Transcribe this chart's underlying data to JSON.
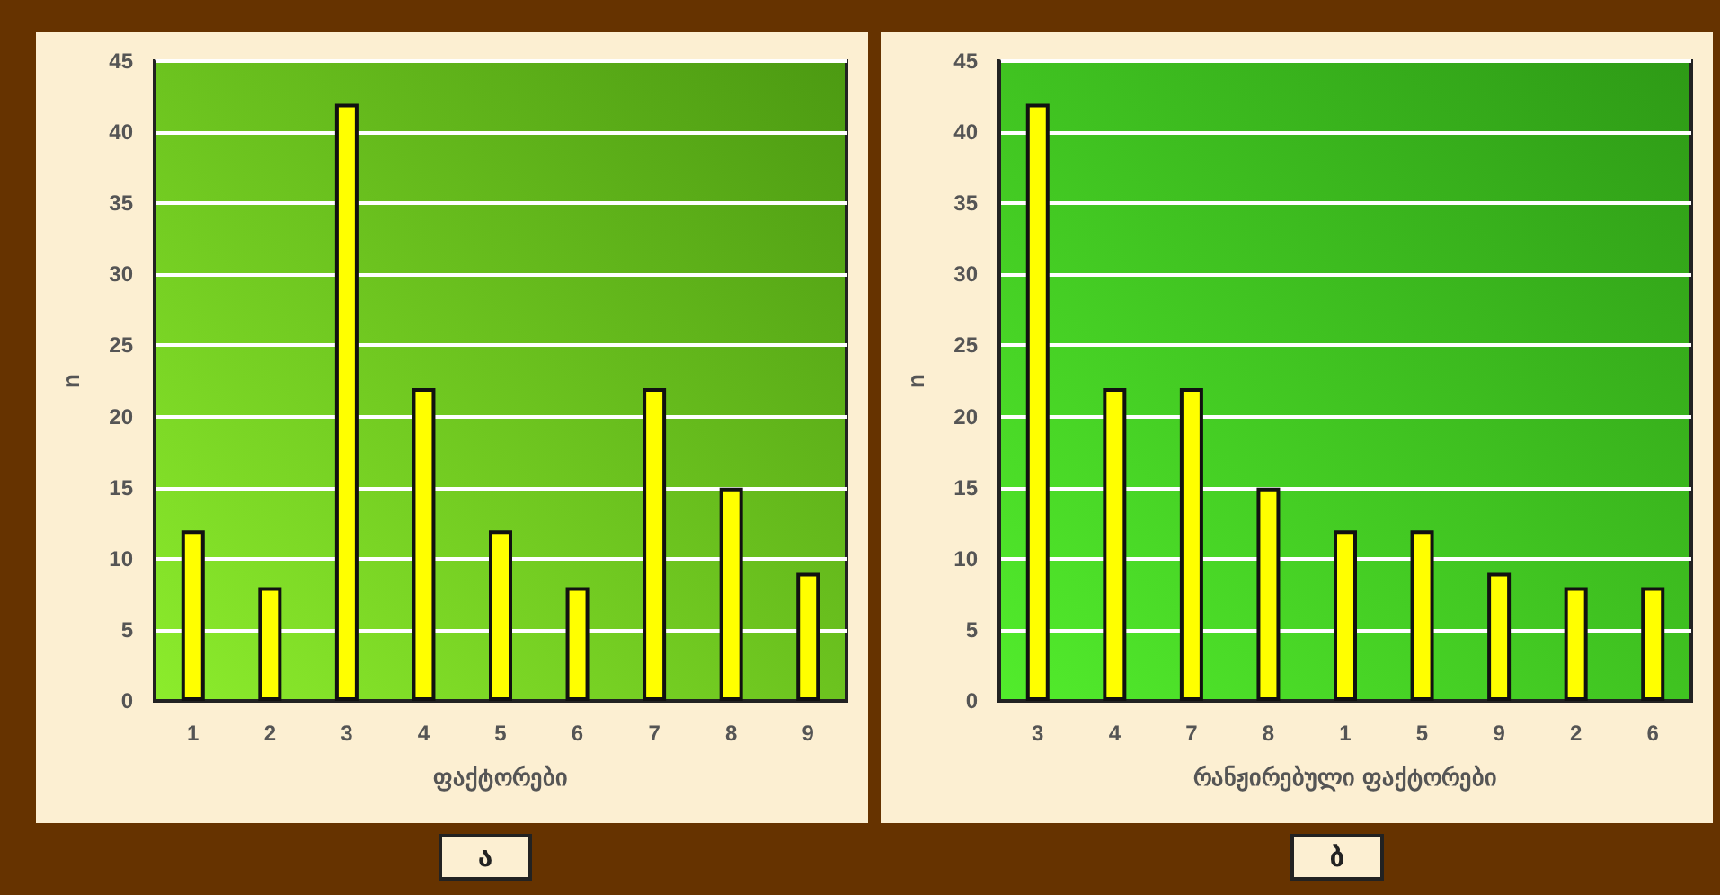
{
  "chart_data": [
    {
      "type": "bar",
      "xlabel": "ფაქტორები",
      "ylabel": "n",
      "categories": [
        "1",
        "2",
        "3",
        "4",
        "5",
        "6",
        "7",
        "8",
        "9"
      ],
      "values": [
        12,
        8,
        42,
        22,
        12,
        8,
        22,
        15,
        9
      ],
      "color": "#ffff00",
      "ylim": [
        0,
        45
      ],
      "yticks": [
        0,
        5,
        10,
        15,
        20,
        25,
        30,
        35,
        40,
        45
      ],
      "grid": "y",
      "annotations": [
        "ა"
      ]
    },
    {
      "type": "bar",
      "xlabel": "რანჟირებული ფაქტორები",
      "ylabel": "n",
      "categories": [
        "3",
        "4",
        "7",
        "8",
        "1",
        "5",
        "9",
        "2",
        "6"
      ],
      "values": [
        42,
        22,
        22,
        15,
        12,
        12,
        9,
        8,
        8
      ],
      "color": "#ffff00",
      "ylim": [
        0,
        45
      ],
      "yticks": [
        0,
        5,
        10,
        15,
        20,
        25,
        30,
        35,
        40,
        45
      ],
      "grid": "y",
      "annotations": [
        "ბ"
      ]
    }
  ]
}
